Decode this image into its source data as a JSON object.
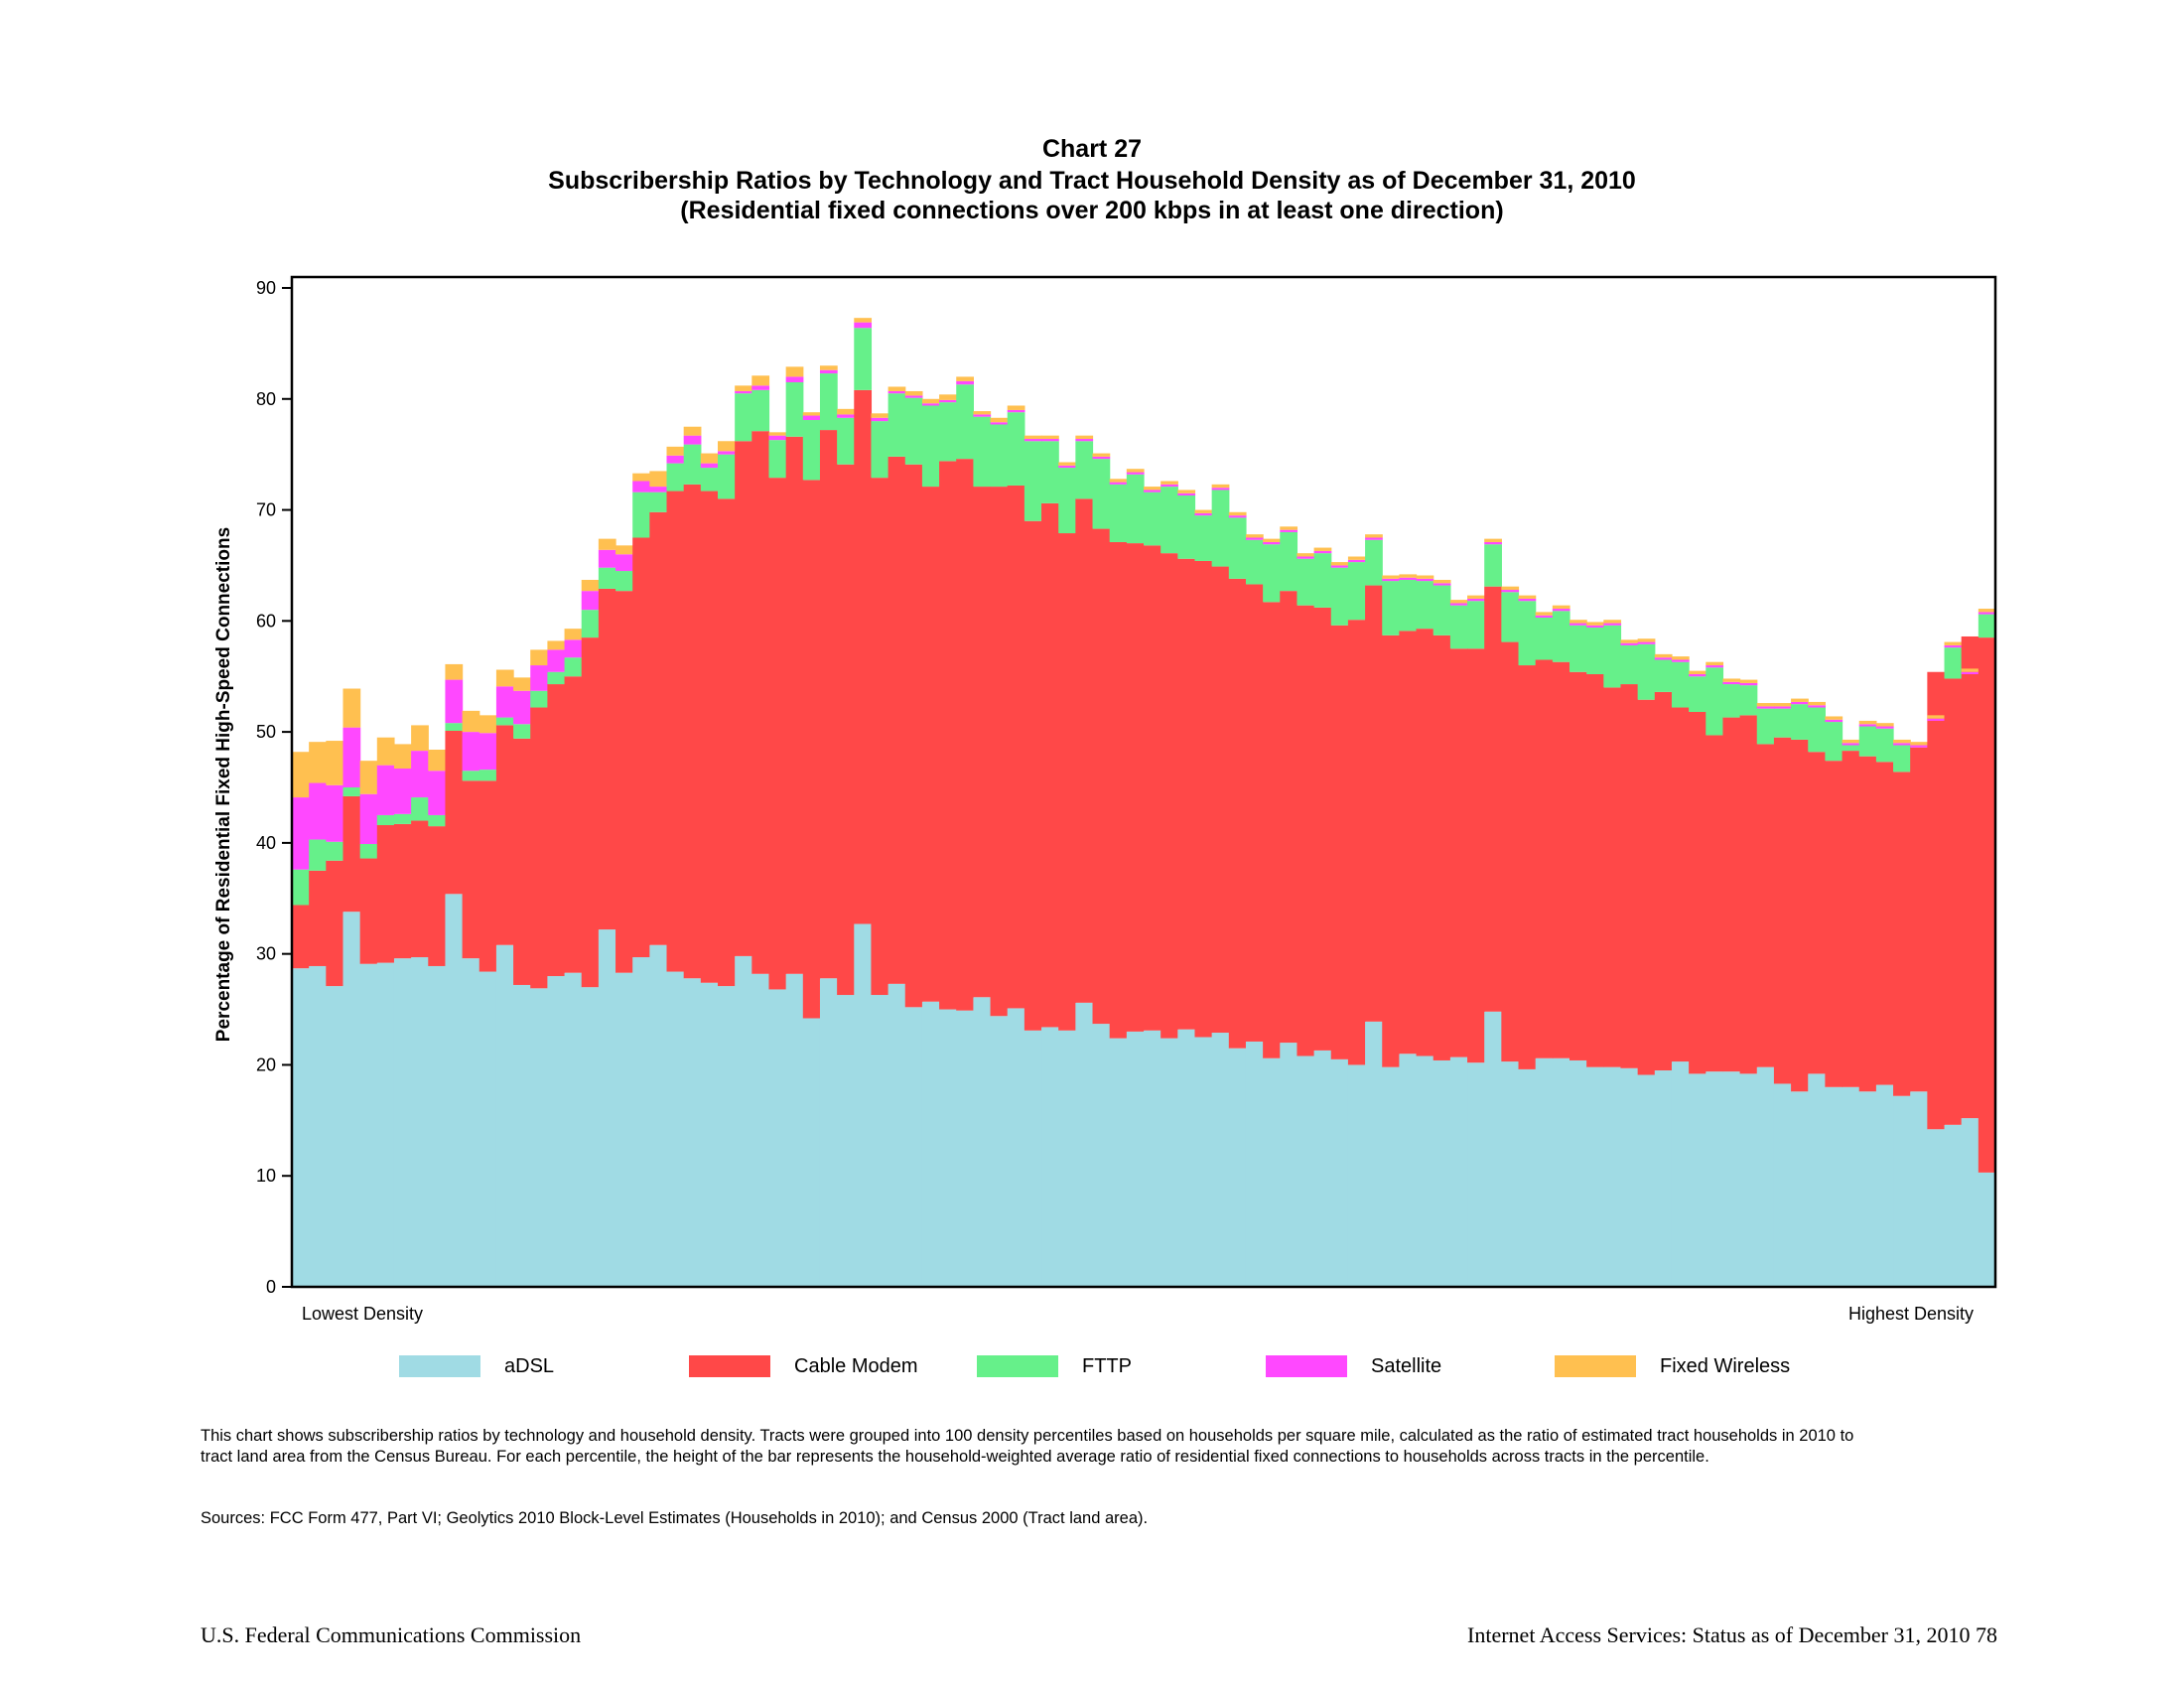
{
  "page": {
    "chart_label": "Chart 27",
    "title": "Subscribership Ratios by Technology and Tract Household Density as of December 31, 2010",
    "subtitle": "(Residential fixed connections over 200 kbps in at least one direction)",
    "note": "This chart shows subscribership ratios by technology and household density.  Tracts were grouped into 100 density percentiles based on households per square mile, calculated as the ratio of estimated tract households in 2010 to tract land area from the Census Bureau. For each percentile, the height of the bar represents the household-weighted average ratio of residential fixed connections to households across tracts in the percentile.",
    "sources": "Sources: FCC Form 477, Part VI; Geolytics 2010 Block-Level Estimates (Households in 2010); and Census 2000 (Tract land area).",
    "footer_left": "U.S. Federal Communications Commission",
    "footer_right": "Internet Access Services: Status as of December 31, 2010  78"
  },
  "chart_data": {
    "type": "bar",
    "stacked": true,
    "title": "Subscribership Ratios by Technology and Tract Household Density as of December 31, 2010",
    "xlabel_left": "Lowest Density",
    "xlabel_right": "Highest Density",
    "ylabel": "Percentage of Residential Fixed High-Speed Connections",
    "ylim": [
      0,
      90
    ],
    "yticks": [
      0,
      10,
      20,
      30,
      40,
      50,
      60,
      70,
      80,
      90
    ],
    "legend_position": "bottom",
    "n_categories": 100,
    "colors": {
      "aDSL": "#a0dbe4",
      "Cable Modem": "#ff4848",
      "FTTP": "#66f08a",
      "Satellite": "#ff48ff",
      "Fixed Wireless": "#ffc050"
    },
    "cumulative_tops": {
      "aDSL": [
        28.7,
        28.9,
        27.1,
        33.8,
        29.1,
        29.2,
        29.6,
        29.7,
        28.9,
        35.4,
        29.6,
        28.4,
        30.8,
        27.2,
        26.9,
        28.0,
        28.3,
        27.0,
        32.2,
        28.3,
        29.7,
        30.8,
        28.4,
        27.8,
        27.4,
        27.1,
        29.8,
        28.2,
        26.8,
        28.2,
        24.2,
        27.8,
        26.3,
        32.7,
        26.3,
        27.3,
        25.2,
        25.7,
        25.0,
        24.9,
        26.1,
        24.4,
        25.1,
        23.1,
        23.4,
        23.1,
        25.6,
        23.7,
        22.4,
        23.0,
        23.1,
        22.4,
        23.2,
        22.5,
        22.9,
        21.5,
        22.1,
        20.6,
        22.0,
        20.8,
        21.3,
        20.5,
        20.0,
        23.9,
        19.8,
        21.0,
        20.8,
        20.4,
        20.7,
        20.2,
        24.8,
        20.3,
        19.6,
        20.6,
        20.6,
        20.4,
        19.8,
        19.8,
        19.7,
        19.1,
        19.5,
        20.3,
        19.2,
        19.4,
        19.4,
        19.2,
        19.8,
        18.3,
        17.6,
        19.2,
        18.0,
        18.0,
        17.6,
        18.2,
        17.2,
        17.6,
        14.2,
        14.6,
        15.2,
        10.3,
        10.4
      ],
      "Cable Modem": [
        34.4,
        37.5,
        38.4,
        44.2,
        38.6,
        41.6,
        41.7,
        42.0,
        41.5,
        50.1,
        45.6,
        45.6,
        50.6,
        49.4,
        52.2,
        54.3,
        55.0,
        58.5,
        62.9,
        62.7,
        67.5,
        69.8,
        71.7,
        72.3,
        71.7,
        71.0,
        76.2,
        77.1,
        72.9,
        76.6,
        72.7,
        77.2,
        74.1,
        80.8,
        72.9,
        74.8,
        74.1,
        72.1,
        74.4,
        74.6,
        72.1,
        72.1,
        72.2,
        69.0,
        70.6,
        67.9,
        71.0,
        68.3,
        67.1,
        67.0,
        66.8,
        66.1,
        65.6,
        65.4,
        64.9,
        63.8,
        63.3,
        61.7,
        62.7,
        61.4,
        61.2,
        59.6,
        60.1,
        63.2,
        58.7,
        59.1,
        59.3,
        58.7,
        57.5,
        57.5,
        63.1,
        58.1,
        56.0,
        56.5,
        56.3,
        55.4,
        55.2,
        54.0,
        54.3,
        52.9,
        53.6,
        52.2,
        51.8,
        49.7,
        51.3,
        51.5,
        48.9,
        49.5,
        49.3,
        48.2,
        47.4,
        48.3,
        47.8,
        47.3,
        46.4,
        48.6,
        55.4,
        54.8,
        58.6,
        58.5
      ],
      "FTTP": [
        37.6,
        40.3,
        40.1,
        45.0,
        39.9,
        42.5,
        42.6,
        44.1,
        42.5,
        50.8,
        46.5,
        46.6,
        51.3,
        50.7,
        53.7,
        55.4,
        56.7,
        61.0,
        64.8,
        64.5,
        71.6,
        71.6,
        74.2,
        75.9,
        73.8,
        75.0,
        80.5,
        80.8,
        76.3,
        81.5,
        78.1,
        82.3,
        78.3,
        86.4,
        78.0,
        80.5,
        80.1,
        79.4,
        79.7,
        81.3,
        78.4,
        77.7,
        78.8,
        76.2,
        76.2,
        73.8,
        76.2,
        74.6,
        72.3,
        73.2,
        71.6,
        72.1,
        71.3,
        69.5,
        71.8,
        69.3,
        67.3,
        66.9,
        68.0,
        65.6,
        66.1,
        64.8,
        65.3,
        67.3,
        63.6,
        63.7,
        63.6,
        63.2,
        61.4,
        61.8,
        66.9,
        62.6,
        61.8,
        60.3,
        60.9,
        59.6,
        59.4,
        59.6,
        57.8,
        57.9,
        56.5,
        56.3,
        55.0,
        55.8,
        54.3,
        54.2,
        52.1,
        52.1,
        52.5,
        52.2,
        50.9,
        48.8,
        50.5,
        50.3,
        48.8,
        48.6,
        51.0,
        57.6,
        55.2,
        60.6,
        60.8
      ],
      "Satellite": [
        44.1,
        45.4,
        45.2,
        50.4,
        44.4,
        47.0,
        46.7,
        48.3,
        46.5,
        54.7,
        50.0,
        49.9,
        54.1,
        53.7,
        56.0,
        57.4,
        58.3,
        62.7,
        66.4,
        66.0,
        72.6,
        72.1,
        74.9,
        76.7,
        74.2,
        75.3,
        80.7,
        81.2,
        76.7,
        82.0,
        78.5,
        82.6,
        78.6,
        86.9,
        78.3,
        80.7,
        80.3,
        79.6,
        79.9,
        81.6,
        78.6,
        77.9,
        79.0,
        76.4,
        76.4,
        74.0,
        76.4,
        74.8,
        72.5,
        73.4,
        71.8,
        72.3,
        71.5,
        69.7,
        72.0,
        69.5,
        67.5,
        67.1,
        68.2,
        65.8,
        66.3,
        65.0,
        65.5,
        67.5,
        63.8,
        63.9,
        63.8,
        63.4,
        61.6,
        62.0,
        67.1,
        62.8,
        62.0,
        60.5,
        61.1,
        59.8,
        59.6,
        59.8,
        58.0,
        58.1,
        56.7,
        56.5,
        55.2,
        56.0,
        54.5,
        54.4,
        52.3,
        52.3,
        52.7,
        52.4,
        51.1,
        49.0,
        50.7,
        50.5,
        49.0,
        48.8,
        51.2,
        57.8,
        55.4,
        60.8,
        61.0
      ],
      "Fixed Wireless": [
        48.2,
        49.1,
        49.2,
        53.9,
        47.4,
        49.5,
        48.9,
        50.6,
        48.4,
        56.1,
        51.9,
        51.5,
        55.6,
        54.9,
        57.4,
        58.2,
        59.3,
        63.7,
        67.4,
        66.8,
        73.3,
        73.5,
        75.7,
        77.5,
        75.1,
        76.2,
        81.2,
        82.1,
        77.0,
        82.9,
        78.8,
        83.0,
        79.1,
        87.3,
        78.7,
        81.1,
        80.7,
        80.0,
        80.4,
        82.0,
        78.9,
        78.3,
        79.4,
        76.7,
        76.7,
        74.3,
        76.7,
        75.1,
        72.8,
        73.7,
        72.1,
        72.6,
        71.8,
        70.0,
        72.3,
        69.8,
        67.8,
        67.4,
        68.5,
        66.1,
        66.6,
        65.3,
        65.8,
        67.8,
        64.1,
        64.2,
        64.1,
        63.7,
        61.9,
        62.3,
        67.4,
        63.1,
        62.3,
        60.8,
        61.4,
        60.1,
        59.9,
        60.1,
        58.3,
        58.4,
        57.0,
        56.8,
        55.5,
        56.3,
        54.8,
        54.7,
        52.6,
        52.6,
        53.0,
        52.7,
        51.4,
        49.3,
        51.0,
        50.8,
        49.3,
        49.1,
        51.5,
        58.1,
        55.7,
        61.1,
        61.3
      ]
    }
  },
  "legend": [
    {
      "key": "aDSL",
      "label": "aDSL",
      "color": "#a0dbe4"
    },
    {
      "key": "Cable Modem",
      "label": "Cable Modem",
      "color": "#ff4848"
    },
    {
      "key": "FTTP",
      "label": "FTTP",
      "color": "#66f08a"
    },
    {
      "key": "Satellite",
      "label": "Satellite",
      "color": "#ff48ff"
    },
    {
      "key": "Fixed Wireless",
      "label": "Fixed Wireless",
      "color": "#ffc050"
    }
  ]
}
